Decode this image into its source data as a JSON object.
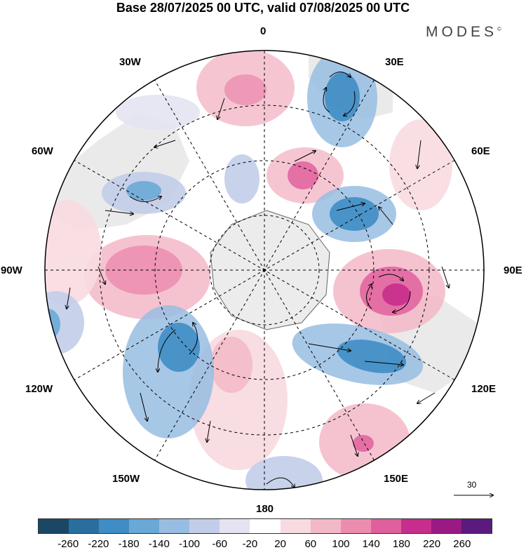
{
  "title": "Base 28/07/2025 00 UTC, valid 07/08/2025 00 UTC",
  "logo": "MODES",
  "logo_mark": "©",
  "map": {
    "labels": {
      "n0": "0",
      "e30": "30E",
      "e60": "60E",
      "e90": "90E",
      "e120": "120E",
      "e150": "150E",
      "s180": "180",
      "w150": "150W",
      "w120": "120W",
      "w90": "90W",
      "w60": "60W",
      "w30": "30W"
    },
    "reference_vector": "30"
  },
  "colorbar": {
    "colors": [
      "#1b4766",
      "#2a6e9e",
      "#3f8dc4",
      "#6aa8d6",
      "#98bde2",
      "#c2cde9",
      "#e4e3f2",
      "#ffffff",
      "#f8dbe0",
      "#f3b8c7",
      "#ec8db0",
      "#e0609d",
      "#c72d8d",
      "#9a1a84",
      "#5b1a7d"
    ],
    "ticks": [
      "-260",
      "-220",
      "-180",
      "-140",
      "-100",
      "-60",
      "-20",
      "20",
      "60",
      "100",
      "140",
      "180",
      "220",
      "260"
    ]
  }
}
